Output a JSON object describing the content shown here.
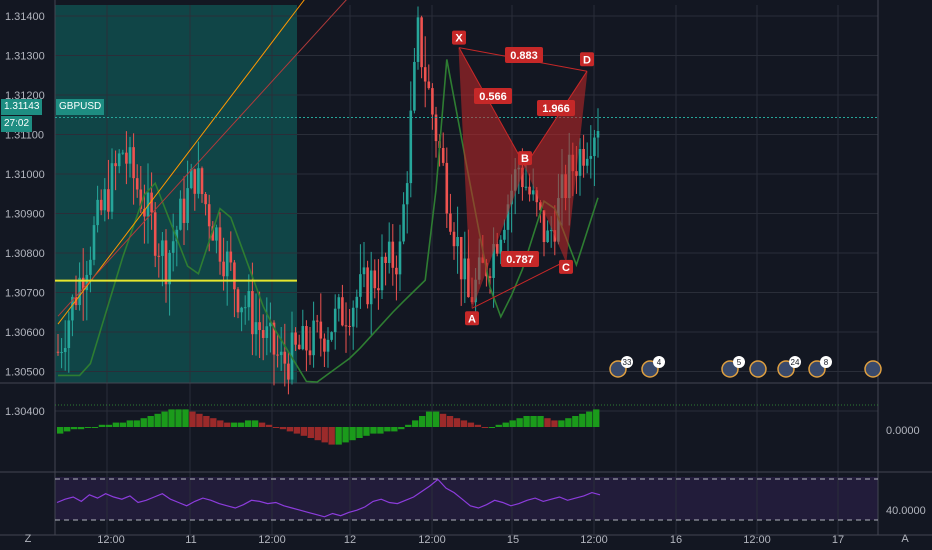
{
  "chart_data": {
    "type": "candlestick",
    "symbol": "GBPUSD",
    "price_axis": {
      "ticks": [
        "1.31400",
        "1.31300",
        "1.31200",
        "1.31100",
        "1.31000",
        "1.30900",
        "1.30800",
        "1.30700",
        "1.30600",
        "1.30500",
        "1.30400"
      ],
      "range": [
        1.3037,
        1.3148
      ]
    },
    "current_price": "1.31143",
    "countdown": "27:02",
    "time_axis": [
      "12:00",
      "11",
      "12:00",
      "12",
      "12:00",
      "15",
      "12:00",
      "16",
      "12:00",
      "17",
      "12:00"
    ],
    "horizontal_level": 1.3073,
    "harmonic_pattern": {
      "points": [
        {
          "label": "X",
          "value": 1.3132
        },
        {
          "label": "A",
          "value": 1.3066
        },
        {
          "label": "B",
          "value": 1.3102
        },
        {
          "label": "C",
          "value": 1.3078
        },
        {
          "label": "D",
          "value": 1.3126
        }
      ],
      "ratios": [
        "0.883",
        "0.566",
        "1.966",
        "0.787"
      ]
    },
    "event_badges": [
      "33",
      "4",
      "5",
      "24",
      "8"
    ],
    "oscillator": {
      "axis_label": "0.0000",
      "values": [
        -3,
        -2,
        -1,
        -1,
        0,
        0,
        1,
        1,
        2,
        2,
        3,
        3,
        4,
        5,
        6,
        7,
        8,
        8,
        8,
        7,
        6,
        5,
        4,
        3,
        2,
        2,
        2,
        3,
        3,
        2,
        1,
        0,
        -1,
        -2,
        -3,
        -4,
        -5,
        -6,
        -7,
        -8,
        -8,
        -7,
        -6,
        -5,
        -4,
        -3,
        -3,
        -2,
        -2,
        -1,
        1,
        3,
        5,
        7,
        7,
        6,
        5,
        4,
        3,
        2,
        1,
        0,
        0,
        1,
        2,
        3,
        4,
        5,
        5,
        5,
        4,
        3,
        3,
        4,
        5,
        6,
        7,
        8
      ]
    },
    "rsi": {
      "axis_label": "40.0000",
      "values": [
        55,
        58,
        60,
        56,
        62,
        59,
        63,
        60,
        58,
        61,
        55,
        57,
        60,
        63,
        58,
        55,
        52,
        56,
        59,
        57,
        54,
        52,
        50,
        53,
        57,
        56,
        54,
        55,
        52,
        50,
        48,
        46,
        44,
        42,
        45,
        43,
        46,
        48,
        51,
        56,
        58,
        55,
        54,
        57,
        60,
        65,
        70,
        76,
        68,
        64,
        58,
        52,
        50,
        53,
        57,
        55,
        52,
        54,
        57,
        59,
        56,
        58,
        60,
        57,
        59,
        61,
        64,
        62
      ]
    }
  },
  "bottom_bar": {
    "left": "Z",
    "right": "A"
  },
  "colors": {
    "bull": "#26a69a",
    "bear": "#ef5350",
    "pattern": "#c62828",
    "level": "#e6e62e",
    "rsi": "#8c3cdc"
  }
}
